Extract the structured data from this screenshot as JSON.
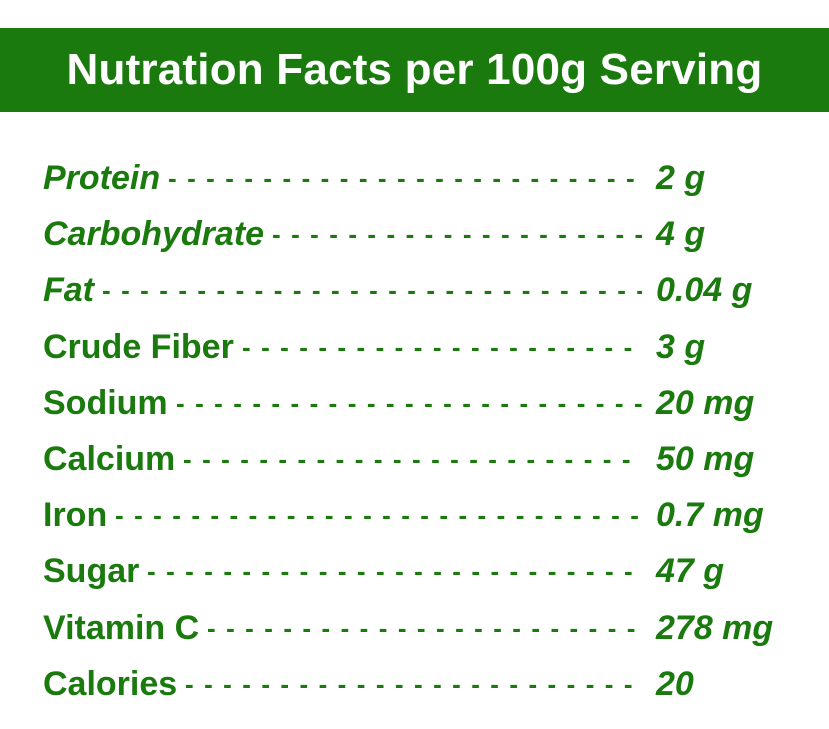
{
  "header": {
    "title": "Nutration Facts per 100g Serving"
  },
  "colors": {
    "header_background": "#1a7a0e",
    "header_text": "#ffffff",
    "text": "#1a7a0e",
    "background": "#ffffff"
  },
  "facts": [
    {
      "label": "Protein",
      "value": "2 g",
      "italic_label": true
    },
    {
      "label": "Carbohydrate",
      "value": "4 g",
      "italic_label": true
    },
    {
      "label": "Fat",
      "value": "0.04 g",
      "italic_label": true
    },
    {
      "label": "Crude Fiber",
      "value": "3 g",
      "italic_label": false
    },
    {
      "label": "Sodium",
      "value": "20 mg",
      "italic_label": false
    },
    {
      "label": "Calcium",
      "value": "50 mg",
      "italic_label": false
    },
    {
      "label": "Iron",
      "value": "0.7 mg",
      "italic_label": false
    },
    {
      "label": "Sugar",
      "value": "47 g",
      "italic_label": false
    },
    {
      "label": "Vitamin C",
      "value": "278 mg",
      "italic_label": false
    },
    {
      "label": "Calories",
      "value": "20",
      "italic_label": false
    }
  ]
}
